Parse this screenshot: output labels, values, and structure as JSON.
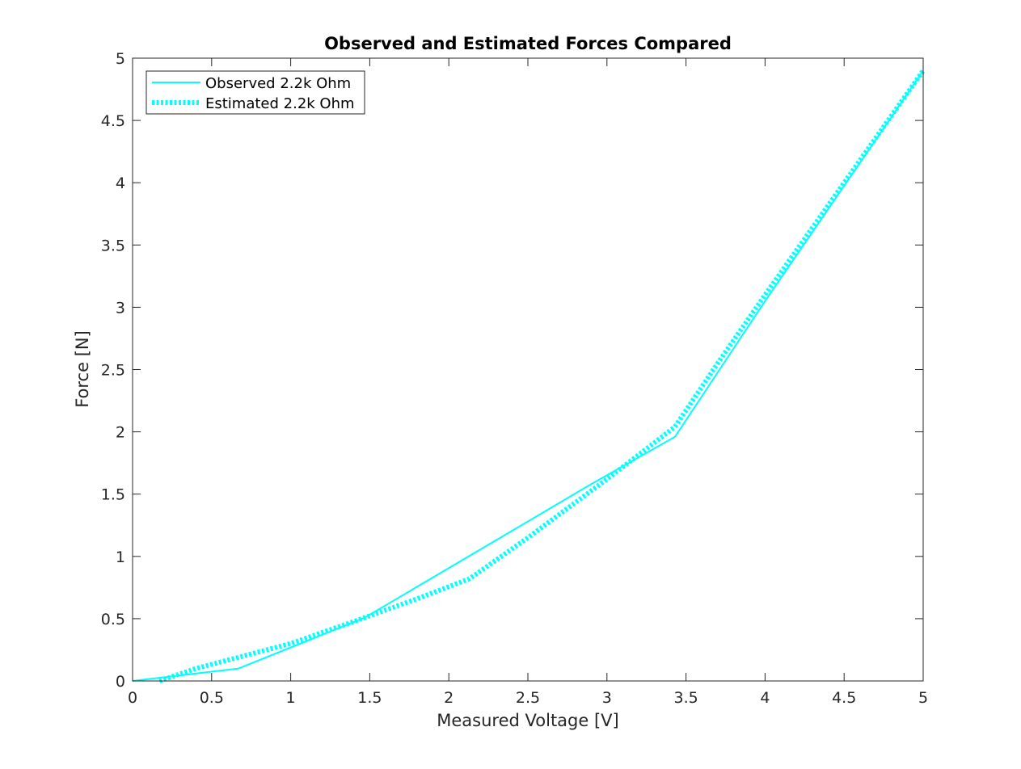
{
  "chart_data": {
    "type": "line",
    "title": "Observed and Estimated Forces Compared",
    "xlabel": "Measured Voltage [V]",
    "ylabel": "Force [N]",
    "xlim": [
      0,
      5
    ],
    "ylim": [
      0,
      5
    ],
    "xticks": [
      0,
      0.5,
      1,
      1.5,
      2,
      2.5,
      3,
      3.5,
      4,
      4.5,
      5
    ],
    "yticks": [
      0,
      0.5,
      1,
      1.5,
      2,
      2.5,
      3,
      3.5,
      4,
      4.5,
      5
    ],
    "xtick_labels": [
      "0",
      "0.5",
      "1",
      "1.5",
      "2",
      "2.5",
      "3",
      "3.5",
      "4",
      "4.5",
      "5"
    ],
    "ytick_labels": [
      "0",
      "0.5",
      "1",
      "1.5",
      "2",
      "2.5",
      "3",
      "3.5",
      "4",
      "4.5",
      "5"
    ],
    "grid": false,
    "legend_position": "top-left",
    "series": [
      {
        "name": "Observed 2.2k Ohm",
        "style": "solid",
        "color": "#00ffff",
        "x": [
          0,
          0.67,
          1.47,
          2.9,
          3.43,
          4.0,
          5.0
        ],
        "y": [
          0,
          0.1,
          0.51,
          1.58,
          1.96,
          3.05,
          4.9
        ]
      },
      {
        "name": "Estimated 2.2k Ohm",
        "style": "dotted-thick",
        "color": "#00ffff",
        "x": [
          0.17,
          0.4,
          0.7,
          1.0,
          1.45,
          1.8,
          2.13,
          2.5,
          3.0,
          3.43,
          3.7,
          4.0,
          4.5,
          5.0
        ],
        "y": [
          0,
          0.1,
          0.2,
          0.3,
          0.5,
          0.66,
          0.82,
          1.15,
          1.62,
          2.04,
          2.55,
          3.1,
          4.0,
          4.9
        ]
      }
    ]
  }
}
